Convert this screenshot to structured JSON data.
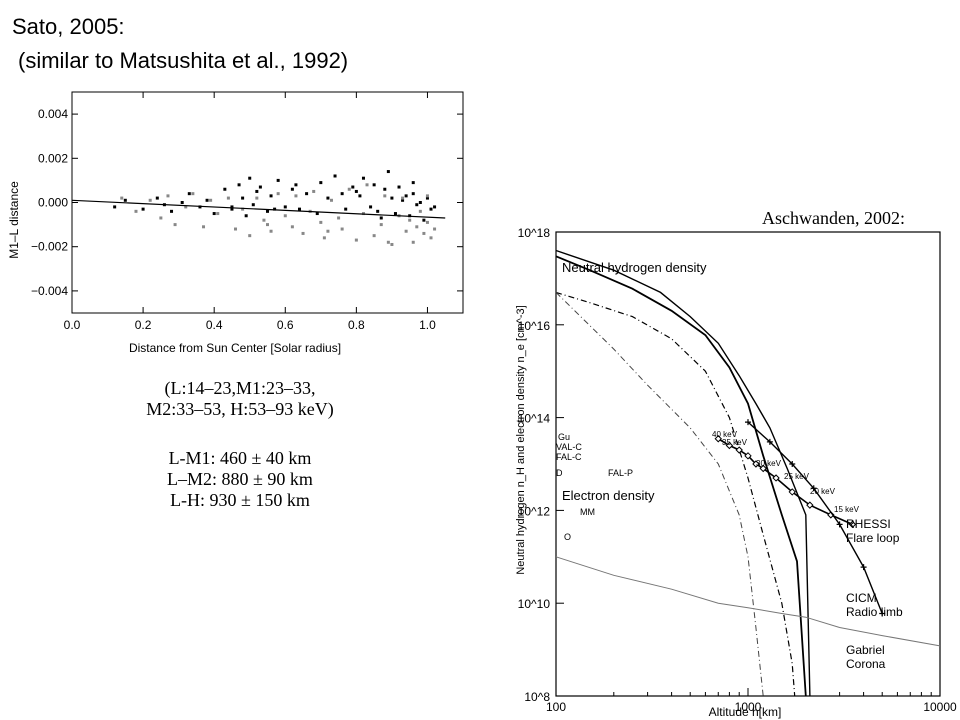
{
  "header": {
    "line1": "Sato, 2005:",
    "line2": " (similar to Matsushita et al., 1992)"
  },
  "caption": {
    "bands_line1": "(L:14–23,M1:23–33,",
    "bands_line2": "M2:33–53, H:53–93 keV)",
    "results": [
      "L-M1:  460 ± 40 km",
      "L–M2: 880 ± 90 km",
      "L-H: 930 ± 150 km"
    ]
  },
  "right_credit": "Aschwanden, 2002:",
  "chart_data": [
    {
      "type": "scatter",
      "title": "",
      "xlabel": "Distance from Sun Center   [Solar radius]",
      "ylabel": "M1–L distance",
      "xlim": [
        0.0,
        1.1
      ],
      "ylim": [
        -0.005,
        0.005
      ],
      "xticks": [
        "0.0",
        "0.2",
        "0.4",
        "0.6",
        "0.8",
        "1.0"
      ],
      "yticks": [
        "0.004",
        "0.002",
        "0.000",
        "−0.002",
        "−0.004"
      ],
      "grid": false,
      "fit_line": {
        "x": [
          0.0,
          1.05
        ],
        "y": [
          0.0001,
          -0.0007
        ]
      },
      "series": [
        {
          "color": "#000000",
          "x": [
            0.12,
            0.15,
            0.2,
            0.24,
            0.26,
            0.28,
            0.31,
            0.33,
            0.36,
            0.38,
            0.4,
            0.43,
            0.45,
            0.47,
            0.48,
            0.49,
            0.5,
            0.51,
            0.53,
            0.55,
            0.56,
            0.58,
            0.6,
            0.62,
            0.64,
            0.66,
            0.69,
            0.7,
            0.72,
            0.74,
            0.77,
            0.79,
            0.81,
            0.82,
            0.84,
            0.85,
            0.86,
            0.88,
            0.89,
            0.9,
            0.91,
            0.92,
            0.93,
            0.94,
            0.95,
            0.96,
            0.97,
            0.98,
            0.99,
            1.0,
            1.01,
            1.02,
            0.52,
            0.63,
            0.76,
            0.87,
            0.96,
            0.45,
            0.57,
            0.8
          ],
          "y": [
            -0.0002,
            0.0001,
            -0.0003,
            0.0002,
            -0.0001,
            -0.0004,
            0.0,
            0.0004,
            -0.0002,
            0.0001,
            -0.0005,
            0.0006,
            -0.0003,
            0.0008,
            0.0002,
            -0.0006,
            0.0011,
            -0.0001,
            0.0007,
            -0.0004,
            0.0003,
            0.001,
            -0.0002,
            0.0006,
            -0.0003,
            0.0004,
            -0.0005,
            0.0009,
            0.0002,
            0.0012,
            -0.0003,
            0.0007,
            0.0003,
            0.0011,
            -0.0002,
            0.0008,
            -0.0004,
            0.0006,
            0.0014,
            0.0002,
            -0.0005,
            0.0007,
            0.0001,
            0.0003,
            -0.0006,
            0.0004,
            -0.0001,
            0.0,
            -0.0008,
            0.0002,
            -0.0003,
            -0.0002,
            0.0005,
            0.0008,
            0.0004,
            -0.0007,
            0.0009,
            -0.0002,
            -0.0003,
            0.0005
          ]
        },
        {
          "color": "#888888",
          "x": [
            0.14,
            0.18,
            0.22,
            0.25,
            0.27,
            0.29,
            0.32,
            0.34,
            0.37,
            0.39,
            0.41,
            0.44,
            0.46,
            0.48,
            0.5,
            0.52,
            0.54,
            0.56,
            0.58,
            0.6,
            0.62,
            0.63,
            0.65,
            0.67,
            0.68,
            0.7,
            0.71,
            0.73,
            0.75,
            0.76,
            0.78,
            0.8,
            0.82,
            0.83,
            0.85,
            0.87,
            0.88,
            0.9,
            0.92,
            0.93,
            0.94,
            0.95,
            0.96,
            0.97,
            0.98,
            0.99,
            1.0,
            1.0,
            1.01,
            1.02,
            0.55,
            0.72,
            0.89
          ],
          "y": [
            0.0002,
            -0.0004,
            0.0001,
            -0.0007,
            0.0003,
            -0.001,
            -0.0002,
            0.0004,
            -0.0011,
            0.0001,
            -0.0005,
            0.0002,
            -0.0012,
            -0.0003,
            -0.0015,
            0.0002,
            -0.0008,
            -0.0013,
            0.0004,
            -0.0006,
            -0.0011,
            0.0003,
            -0.0014,
            -0.0004,
            0.0005,
            -0.0009,
            -0.0016,
            0.0001,
            -0.0007,
            -0.0012,
            0.0006,
            -0.0017,
            -0.0005,
            0.0008,
            -0.0015,
            -0.001,
            0.0003,
            -0.0019,
            -0.0006,
            0.0002,
            -0.0013,
            -0.0008,
            -0.0018,
            -0.0011,
            -0.0004,
            -0.0014,
            -0.0009,
            0.0003,
            -0.0016,
            -0.0012,
            -0.001,
            -0.0013,
            -0.0018
          ]
        }
      ]
    },
    {
      "type": "line",
      "title": "",
      "xlabel": "Altitude  h[km]",
      "ylabel": "Neutral hydrogen n_H and electron density n_e [cm^-3]",
      "xscale": "log",
      "yscale": "log",
      "xlim": [
        100,
        10000
      ],
      "ylim": [
        100000000.0,
        1e+18
      ],
      "xticks": [
        "100",
        "1000",
        "10000"
      ],
      "yticks": [
        "10^8",
        "10^10",
        "10^12",
        "10^14",
        "10^16",
        "10^18"
      ],
      "annotations": [
        "Neutral hydrogen density",
        "Electron density",
        "RHESSI",
        "Flare loop",
        "CICM",
        "Radio limb",
        "Gabriel",
        "Corona",
        "Gu",
        "VAL-C",
        "FAL-C",
        "FAL-P",
        "D",
        "MM",
        "O",
        "40 keV",
        "35 keV",
        "30 keV",
        "25 keV",
        "20 keV",
        "15 keV"
      ],
      "series": [
        {
          "x": [
            100,
            150,
            250,
            400,
            600,
            800,
            1000,
            1200,
            1500,
            1700,
            1750
          ],
          "y": [
            5e+16,
            3e+16,
            1.5e+16,
            5000000000000000.0,
            1000000000000000.0,
            100000000000000.0,
            5000000000000.0,
            300000000000.0,
            10000000000.0,
            500000000.0,
            100000000.0
          ]
        },
        {
          "x": [
            100,
            150,
            250,
            400,
            600,
            800,
            1000,
            1200,
            1500,
            1800,
            2000
          ],
          "y": [
            3e+17,
            1.5e+17,
            6e+16,
            2e+16,
            6000000000000000.0,
            1200000000000000.0,
            200000000000000.0,
            15000000000000.0,
            800000000000.0,
            80000000000.0,
            100000000.0
          ]
        },
        {
          "x": [
            100,
            200,
            350,
            500,
            700,
            900,
            1100,
            1300,
            1600,
            2000,
            2100
          ],
          "y": [
            4e+17,
            1.5e+17,
            5e+16,
            1.5e+16,
            4000000000000000.0,
            800000000000000.0,
            200000000000000.0,
            60000000000000.0,
            8000000000000.0,
            800000000000.0,
            100000000.0
          ]
        },
        {
          "x": [
            100,
            200,
            300,
            500,
            700,
            900,
            1000,
            1100,
            1200
          ],
          "y": [
            5e+16,
            3000000000000000.0,
            500000000000000.0,
            60000000000000.0,
            10000000000000.0,
            800000000000.0,
            100000000000.0,
            3000000000.0,
            100000000.0
          ]
        },
        {
          "x": [
            700,
            800,
            900,
            1000,
            1100,
            1200,
            1400,
            1700,
            2100,
            2700,
            3500
          ],
          "y": [
            35000000000000.0,
            25000000000000.0,
            20000000000000.0,
            15000000000000.0,
            10000000000000.0,
            8000000000000.0,
            5000000000000.0,
            2500000000000.0,
            1300000000000.0,
            800000000000.0,
            500000000000.0
          ]
        },
        {
          "x": [
            1000,
            1300,
            1700,
            2200,
            3000,
            4000,
            5000
          ],
          "y": [
            80000000000000.0,
            30000000000000.0,
            10000000000000.0,
            3000000000000.0,
            500000000000.0,
            60000000000.0,
            6000000000.0
          ]
        },
        {
          "x": [
            100,
            200,
            400,
            700,
            1000,
            1500,
            2000,
            3000,
            5000,
            10000
          ],
          "y": [
            100000000000.0,
            40000000000.0,
            20000000000.0,
            10000000000.0,
            8000000000.0,
            6000000000.0,
            5000000000.0,
            3000000000.0,
            2000000000.0,
            1200000000.0
          ]
        }
      ]
    }
  ]
}
